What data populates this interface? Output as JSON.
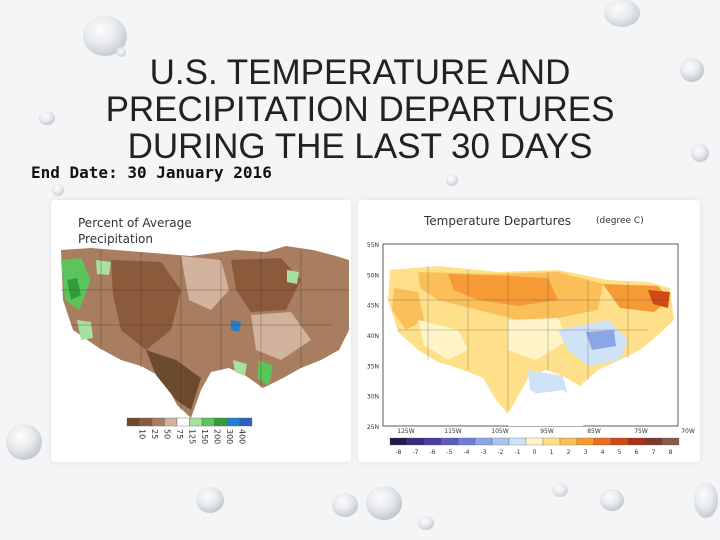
{
  "slide": {
    "title": "U.S. TEMPERATURE AND PRECIPITATION DEPARTURES DURING THE LAST 30 DAYS",
    "end_date": "End Date: 30 January 2016"
  },
  "precip_map": {
    "caption": "Percent of Average Precipitation",
    "legend_labels": [
      "10",
      "25",
      "50",
      "75",
      "125",
      "150",
      "200",
      "300",
      "400"
    ],
    "legend_colors": [
      "#6b4a2e",
      "#8a5a3a",
      "#a97d60",
      "#d2b49e",
      "#ffffff",
      "#a8e0a0",
      "#5cc45a",
      "#2f9e3a",
      "#1f7fd0",
      "#2c5fb8"
    ]
  },
  "temp_map": {
    "caption": "Temperature Departures",
    "unit": "(degree C)",
    "lat_labels": [
      "55N",
      "50N",
      "45N",
      "40N",
      "35N",
      "30N",
      "25N"
    ],
    "lon_labels": [
      "125W",
      "115W",
      "105W",
      "95W",
      "85W",
      "75W",
      "70W"
    ],
    "legend_labels": [
      "-8",
      "-7",
      "-6",
      "-5",
      "-4",
      "-3",
      "-2",
      "-1",
      "0",
      "1",
      "2",
      "3",
      "4",
      "5",
      "6",
      "7",
      "8"
    ],
    "legend_colors": [
      "#26184a",
      "#3b2b7a",
      "#4a3fa0",
      "#5a5cc0",
      "#6f7fd6",
      "#8aa6e6",
      "#a9c6f0",
      "#cfe2f7",
      "#fff4c8",
      "#ffe08a",
      "#fbbf5a",
      "#f59a35",
      "#ea6f1c",
      "#cf4a14",
      "#a8331b",
      "#7a3a2a",
      "#8a5a4a"
    ]
  }
}
